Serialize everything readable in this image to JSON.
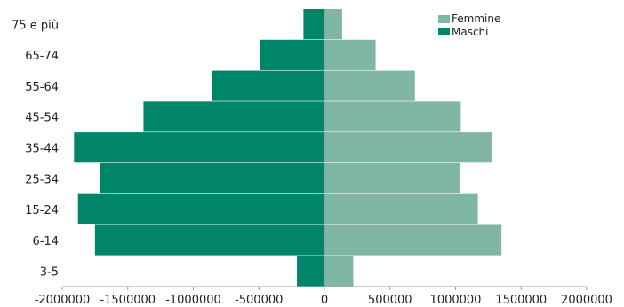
{
  "chart_data": {
    "type": "bar",
    "orientation": "horizontal",
    "layout": "population-pyramid",
    "categories": [
      "75 e più",
      "65-74",
      "55-64",
      "45-54",
      "35-44",
      "25-34",
      "15-24",
      "6-14",
      "3-5"
    ],
    "series": [
      {
        "name": "Femmine",
        "color": "#80b6a6",
        "values": [
          135000,
          390000,
          690000,
          1040000,
          1280000,
          1030000,
          1170000,
          1350000,
          220000
        ]
      },
      {
        "name": "Maschi",
        "color": "#00846a",
        "values": [
          -160000,
          -490000,
          -860000,
          -1380000,
          -1910000,
          -1710000,
          -1880000,
          -1750000,
          -210000
        ]
      }
    ],
    "xlim": [
      -2000000,
      2000000
    ],
    "xticks": [
      "-2000000",
      "-1500000",
      "-1000000",
      "-500000",
      "0",
      "500000",
      "1000000",
      "1500000",
      "2000000"
    ],
    "title": "",
    "xlabel": "",
    "ylabel": "",
    "grid": false,
    "legend": {
      "position": "top-right",
      "entries": [
        "Femmine",
        "Maschi"
      ]
    }
  }
}
